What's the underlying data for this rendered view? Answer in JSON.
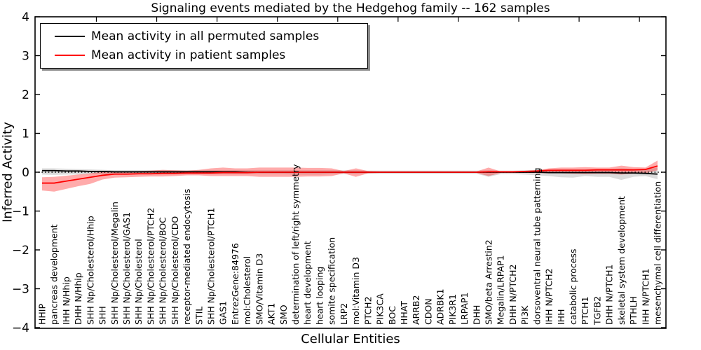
{
  "figure": {
    "title": "Signaling events mediated by the Hedgehog family -- 162 samples",
    "xlabel": "Cellular Entities",
    "ylabel": "Inferred Activity",
    "legend": [
      {
        "label": "Mean activity in all permuted samples",
        "color": "#000000"
      },
      {
        "label": "Mean activity in patient samples",
        "color": "#ff0000"
      }
    ]
  },
  "chart_data": {
    "type": "line",
    "title": "Signaling events mediated by the Hedgehog family -- 162 samples",
    "xlabel": "Cellular Entities",
    "ylabel": "Inferred Activity",
    "ylim": [
      -4,
      4
    ],
    "yticks": [
      4,
      3,
      2,
      1,
      0,
      -1,
      -2,
      -3,
      -4
    ],
    "grid": false,
    "legend_position": "upper left",
    "zero_line": "dotted-black-at-0",
    "band_note": "each series has a shaded confidence band (upper/lower) around its mean line",
    "categories": [
      "HHIP",
      "pancreas development",
      "IHH N/Hhip",
      "DHH N/Hhip",
      "SHH Np/Cholesterol/Hhip",
      "SHH",
      "SHH Np/Cholesterol/Megalin",
      "SHH Np/Cholesterol/GAS1",
      "SHH Np/Cholesterol",
      "SHH Np/Cholesterol/PTCH2",
      "SHH Np/Cholesterol/BOC",
      "SHH Np/Cholesterol/CDO",
      "receptor-mediated endocytosis",
      "STIL",
      "SHH Np/Cholesterol/PTCH1",
      "GAS1",
      "EntrezGene:84976",
      "mol:Cholesterol",
      "SMO/Vitamin D3",
      "AKT1",
      "SMO",
      "determination of left/right symmetry",
      "heart development",
      "heart looping",
      "somite specification",
      "LRP2",
      "mol:Vitamin D3",
      "PTCH2",
      "PIK3CA",
      "BOC",
      "HHAT",
      "ARRB2",
      "CDON",
      "ADRBK1",
      "PIK3R1",
      "LRPAP1",
      "DHH",
      "SMO/beta Arrestin2",
      "Megalin/LRPAP1",
      "DHH N/PTCH2",
      "PI3K",
      "dorsoventral neural tube patterning",
      "IHH N/PTCH2",
      "IHH",
      "catabolic process",
      "PTCH1",
      "TGFB2",
      "DHH N/PTCH1",
      "skeletal system development",
      "PTHLH",
      "IHH N/PTCH1",
      "mesenchymal cell differentiation"
    ],
    "series": [
      {
        "name": "Mean activity in all permuted samples",
        "color": "#000000",
        "band_color": "#000000",
        "band_opacity": 0.14,
        "values": [
          0.04,
          0.04,
          0.03,
          0.03,
          0.02,
          0.02,
          0.01,
          0.01,
          0.01,
          0.01,
          0.01,
          0.01,
          0.01,
          0.01,
          0.01,
          0.01,
          0.01,
          0.0,
          0.0,
          0.0,
          0.0,
          0.0,
          0.0,
          0.0,
          0.0,
          0.0,
          0.0,
          0.0,
          0.0,
          0.0,
          0.0,
          0.0,
          0.0,
          0.0,
          0.0,
          0.0,
          0.0,
          0.0,
          0.0,
          0.0,
          0.0,
          0.0,
          -0.01,
          -0.01,
          -0.01,
          -0.01,
          -0.01,
          -0.01,
          -0.02,
          -0.02,
          -0.03,
          -0.05
        ],
        "upper": [
          0.1,
          0.1,
          0.09,
          0.08,
          0.07,
          0.06,
          0.05,
          0.05,
          0.05,
          0.05,
          0.05,
          0.05,
          0.05,
          0.05,
          0.05,
          0.05,
          0.05,
          0.05,
          0.05,
          0.05,
          0.05,
          0.05,
          0.05,
          0.05,
          0.05,
          0.05,
          0.05,
          0.04,
          0.04,
          0.04,
          0.04,
          0.04,
          0.04,
          0.04,
          0.04,
          0.04,
          0.04,
          0.05,
          0.04,
          0.04,
          0.05,
          0.06,
          0.06,
          0.07,
          0.07,
          0.07,
          0.08,
          0.08,
          0.1,
          0.08,
          0.08,
          0.12
        ],
        "lower": [
          -0.06,
          -0.07,
          -0.06,
          -0.06,
          -0.05,
          -0.05,
          -0.05,
          -0.05,
          -0.05,
          -0.05,
          -0.05,
          -0.05,
          -0.05,
          -0.05,
          -0.05,
          -0.05,
          -0.05,
          -0.05,
          -0.05,
          -0.05,
          -0.05,
          -0.06,
          -0.06,
          -0.06,
          -0.05,
          -0.05,
          -0.05,
          -0.04,
          -0.04,
          -0.04,
          -0.04,
          -0.04,
          -0.04,
          -0.04,
          -0.04,
          -0.04,
          -0.04,
          -0.12,
          -0.05,
          -0.05,
          -0.06,
          -0.08,
          -0.1,
          -0.13,
          -0.14,
          -0.1,
          -0.12,
          -0.12,
          -0.2,
          -0.12,
          -0.1,
          -0.18
        ]
      },
      {
        "name": "Mean activity in patient samples",
        "color": "#ff0000",
        "band_color": "#ff0000",
        "band_opacity": 0.33,
        "values": [
          -0.28,
          -0.28,
          -0.23,
          -0.18,
          -0.13,
          -0.08,
          -0.05,
          -0.05,
          -0.04,
          -0.04,
          -0.03,
          -0.03,
          -0.02,
          -0.02,
          -0.02,
          -0.01,
          -0.01,
          -0.01,
          0.0,
          0.0,
          0.0,
          0.0,
          0.0,
          0.0,
          0.0,
          0.0,
          0.0,
          0.0,
          0.0,
          0.0,
          0.0,
          0.0,
          0.0,
          0.0,
          0.0,
          0.0,
          0.0,
          0.01,
          0.01,
          0.01,
          0.02,
          0.03,
          0.05,
          0.05,
          0.05,
          0.05,
          0.06,
          0.06,
          0.06,
          0.06,
          0.07,
          0.16
        ],
        "upper": [
          -0.13,
          -0.12,
          -0.09,
          -0.06,
          -0.03,
          0.01,
          0.02,
          0.02,
          0.03,
          0.04,
          0.06,
          0.05,
          0.04,
          0.06,
          0.1,
          0.12,
          0.1,
          0.1,
          0.12,
          0.12,
          0.12,
          0.12,
          0.11,
          0.11,
          0.1,
          0.03,
          0.1,
          0.03,
          0.02,
          0.02,
          0.02,
          0.02,
          0.02,
          0.02,
          0.02,
          0.02,
          0.02,
          0.12,
          0.02,
          0.02,
          0.03,
          0.05,
          0.1,
          0.12,
          0.12,
          0.13,
          0.12,
          0.12,
          0.17,
          0.13,
          0.12,
          0.3
        ],
        "lower": [
          -0.47,
          -0.5,
          -0.43,
          -0.36,
          -0.3,
          -0.19,
          -0.14,
          -0.13,
          -0.12,
          -0.11,
          -0.11,
          -0.1,
          -0.08,
          -0.08,
          -0.1,
          -0.1,
          -0.1,
          -0.1,
          -0.12,
          -0.12,
          -0.12,
          -0.12,
          -0.11,
          -0.11,
          -0.1,
          -0.03,
          -0.12,
          -0.03,
          -0.02,
          -0.02,
          -0.02,
          -0.02,
          -0.02,
          -0.02,
          -0.02,
          -0.02,
          -0.02,
          -0.1,
          -0.02,
          -0.02,
          -0.02,
          -0.02,
          -0.03,
          -0.03,
          -0.04,
          -0.05,
          -0.04,
          -0.04,
          -0.06,
          -0.04,
          -0.03,
          0.05
        ]
      }
    ]
  }
}
